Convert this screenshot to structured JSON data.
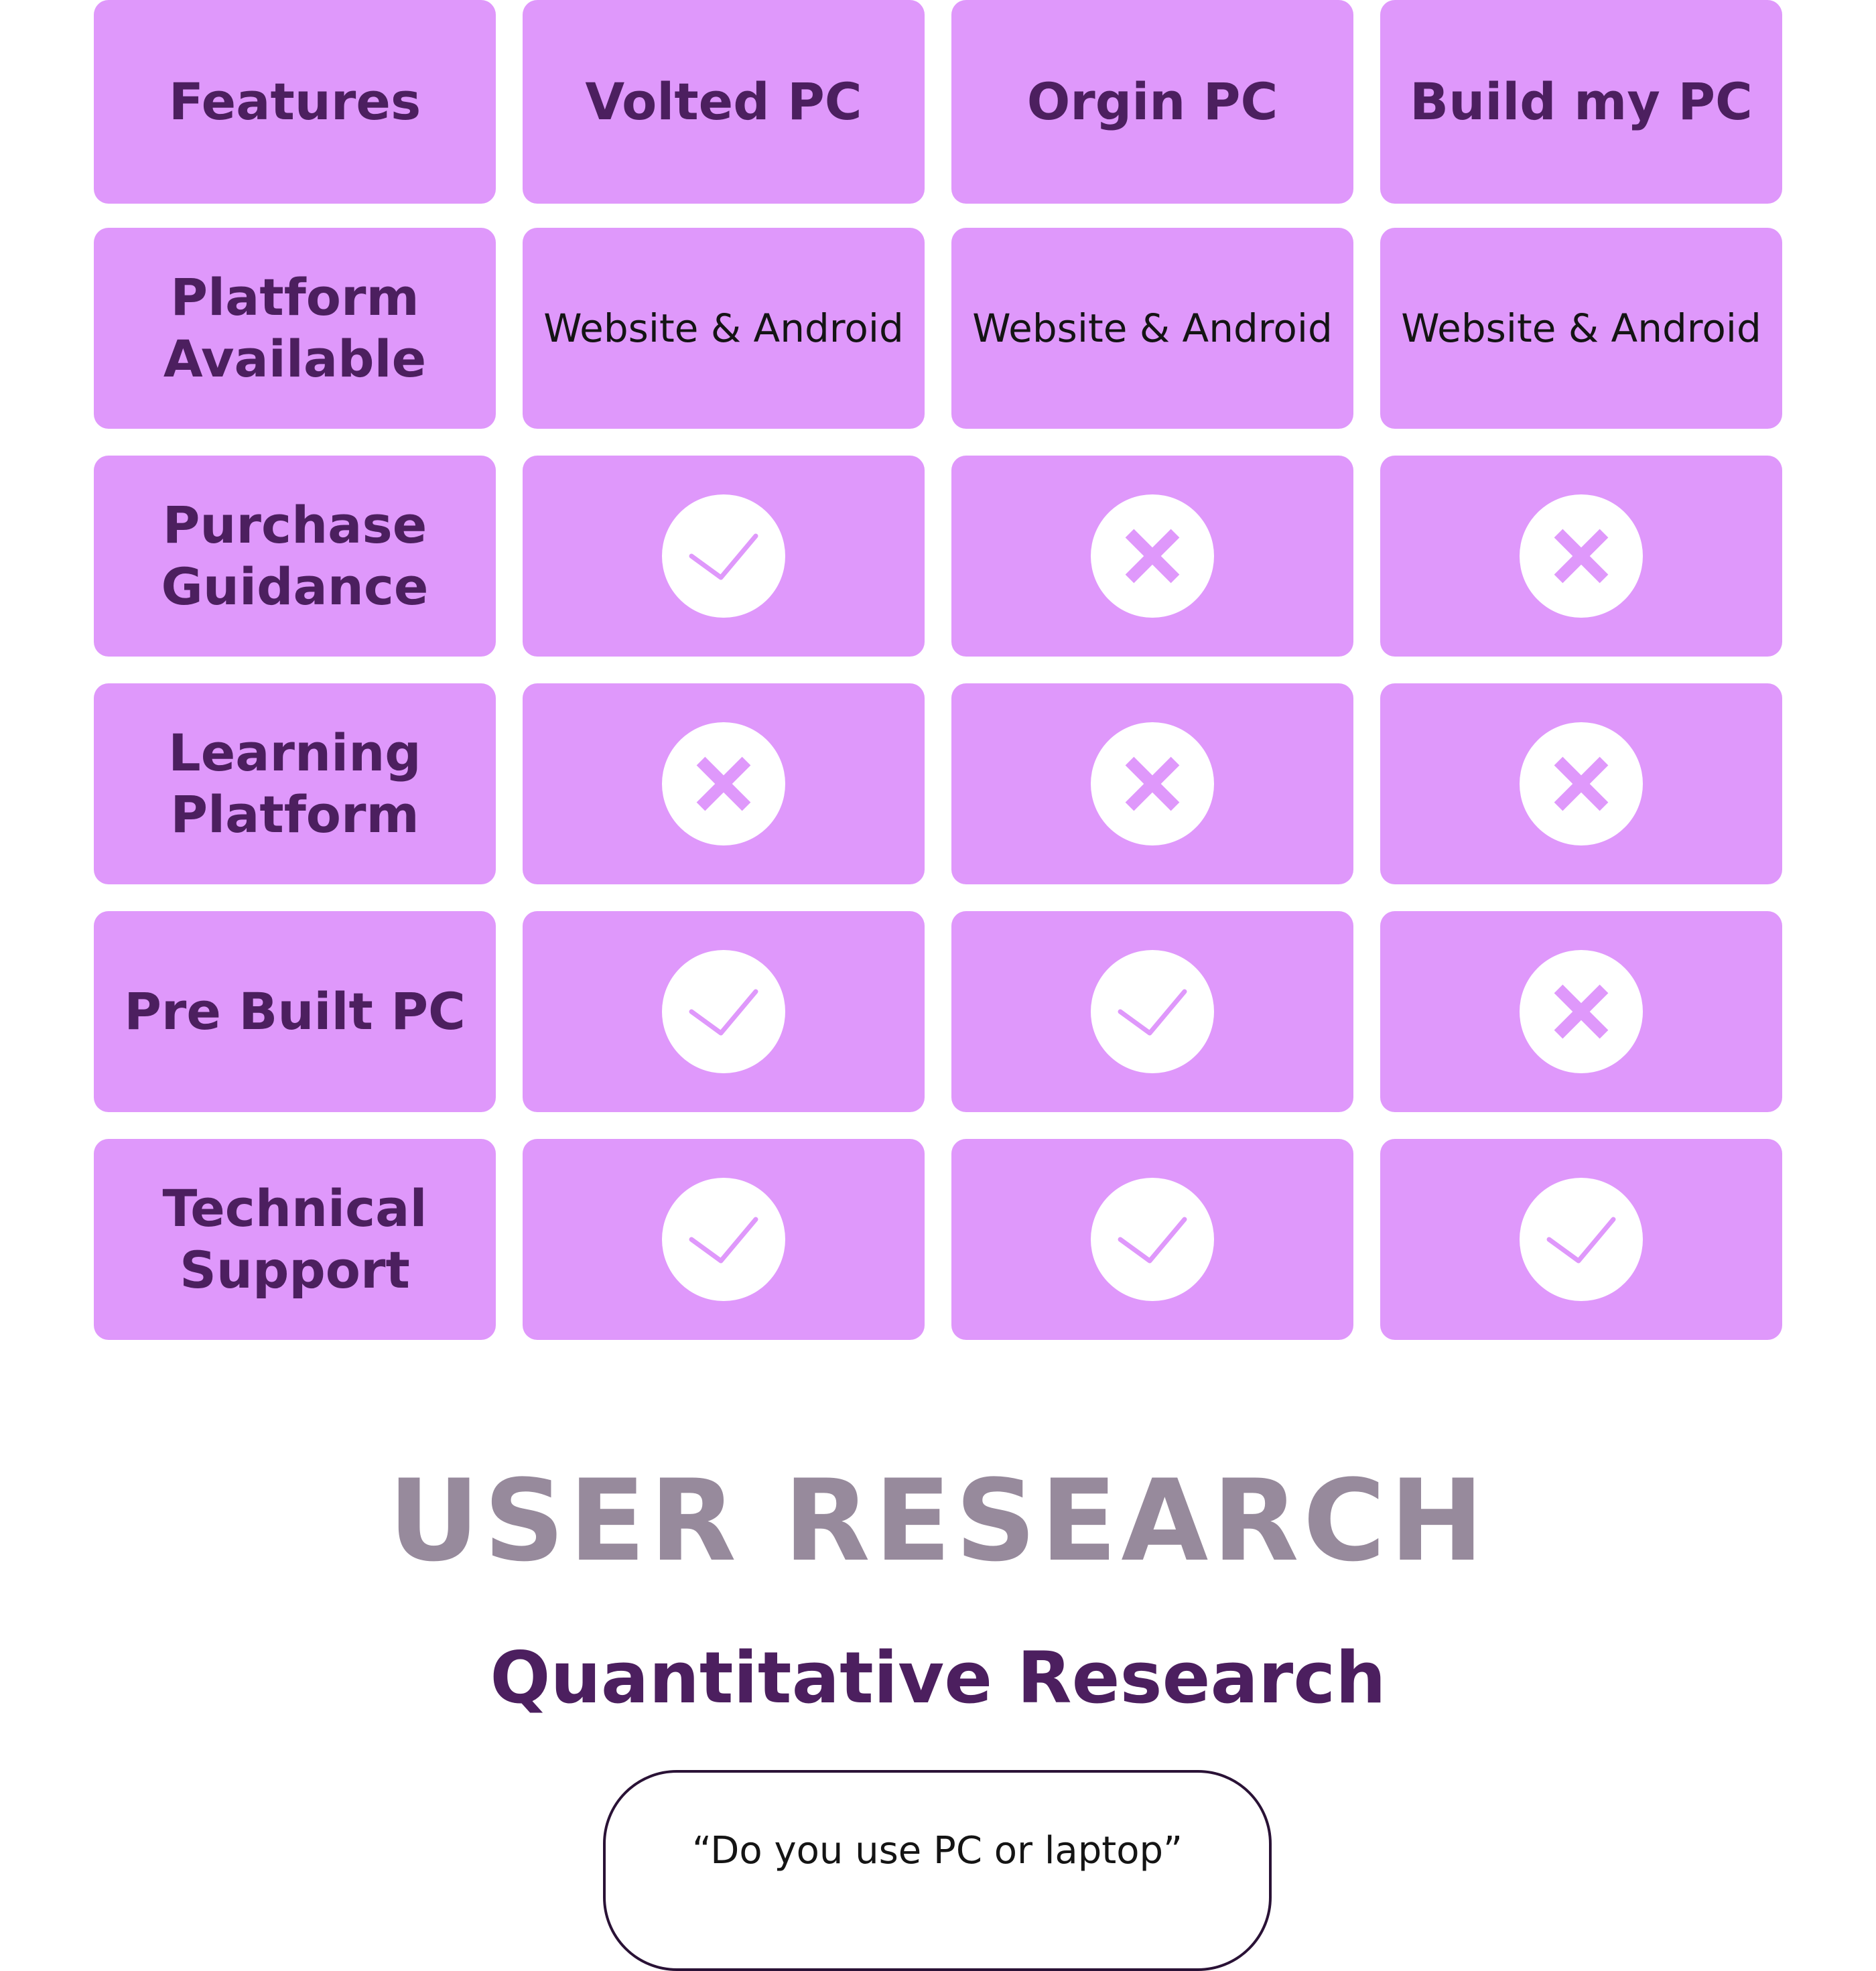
{
  "comparison": {
    "columns": [
      "Features",
      "Volted PC",
      "Orgin PC",
      "Build my PC"
    ],
    "rows": [
      {
        "feature": "Platform\nAvailable",
        "values": [
          "Website & Android",
          "Website & Android",
          "Website & Android"
        ]
      },
      {
        "feature": "Purchase\nGuidance",
        "values": [
          "check",
          "cross",
          "cross"
        ]
      },
      {
        "feature": "Learning\nPlatform",
        "values": [
          "cross",
          "cross",
          "cross"
        ]
      },
      {
        "feature": "Pre Built PC",
        "values": [
          "check",
          "check",
          "cross"
        ]
      },
      {
        "feature": "Technical\nSupport",
        "values": [
          "check",
          "check",
          "check"
        ]
      }
    ],
    "icons": {
      "check": "check-icon",
      "cross": "cross-icon"
    },
    "colors": {
      "cell": "#df98fb",
      "label": "#4c1f5f",
      "badge": "#ffffff",
      "mark": "#df98fb"
    }
  },
  "research": {
    "section_title": "USER RESEARCH",
    "subtitle": "Quantitative Research",
    "question": "“Do you use PC or laptop”"
  }
}
